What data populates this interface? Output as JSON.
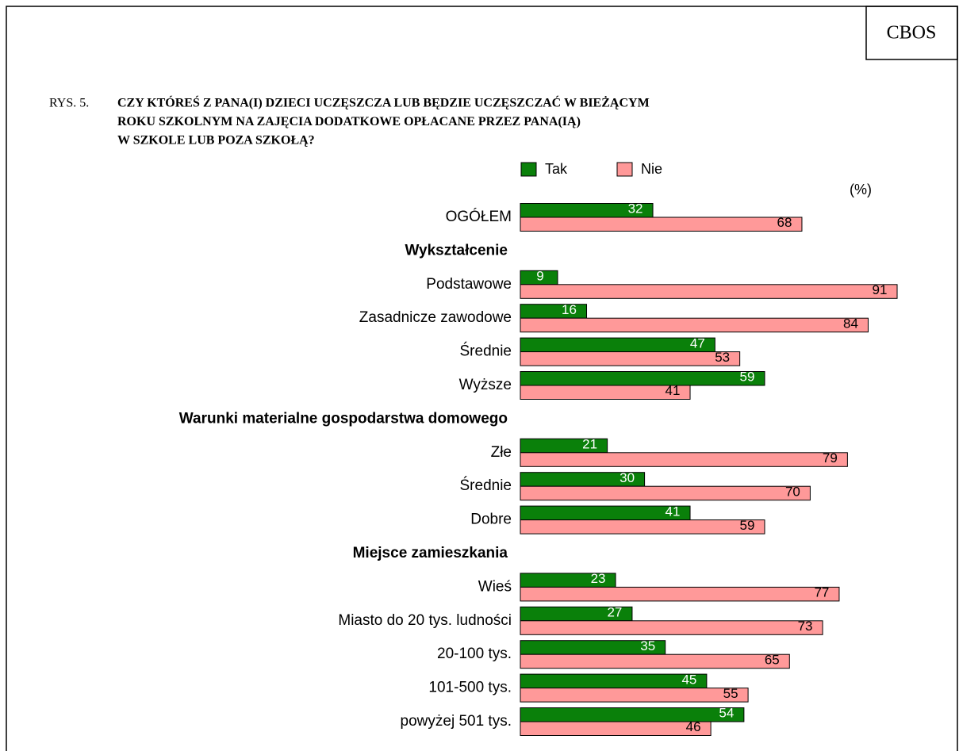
{
  "header": "CBOS",
  "chart_data": {
    "type": "hbar",
    "figure_label": "RYS. 5.",
    "title": [
      "CZY KTÓREŚ Z PANA(I) DZIECI UCZĘSZCZA LUB BĘDZIE UCZĘSZCZAĆ W BIEŻĄCYM",
      "ROKU SZKOLNYM NA ZAJĘCIA DODATKOWE OPŁACANE PRZEZ PANA(IĄ)",
      "W SZKOLE LUB POZA SZKOŁĄ?"
    ],
    "unit_label": "(%)",
    "legend": "top",
    "xlim": [
      0,
      100
    ],
    "categories": [
      "OGÓŁEM",
      "Wykształcenie",
      "Podstawowe",
      "Zasadnicze zawodowe",
      "Średnie",
      "Wyższe",
      "Warunki materialne gospodarstwa domowego",
      "Złe",
      "Średnie",
      "Dobre",
      "Miejsce zamieszkania",
      "Wieś",
      "Miasto do 20 tys. ludności",
      "20-100 tys.",
      "101-500 tys.",
      "powyżej 501 tys."
    ],
    "series": [
      {
        "name": "Tak",
        "color": "#0a800a",
        "label_color": "#ffffff",
        "values": [
          32,
          null,
          9,
          16,
          47,
          59,
          null,
          21,
          30,
          41,
          null,
          23,
          27,
          35,
          45,
          54
        ]
      },
      {
        "name": "Nie",
        "color": "#ff9999",
        "label_color": "#000000",
        "values": [
          68,
          null,
          91,
          84,
          53,
          41,
          null,
          79,
          70,
          59,
          null,
          77,
          73,
          65,
          55,
          46
        ]
      }
    ]
  }
}
